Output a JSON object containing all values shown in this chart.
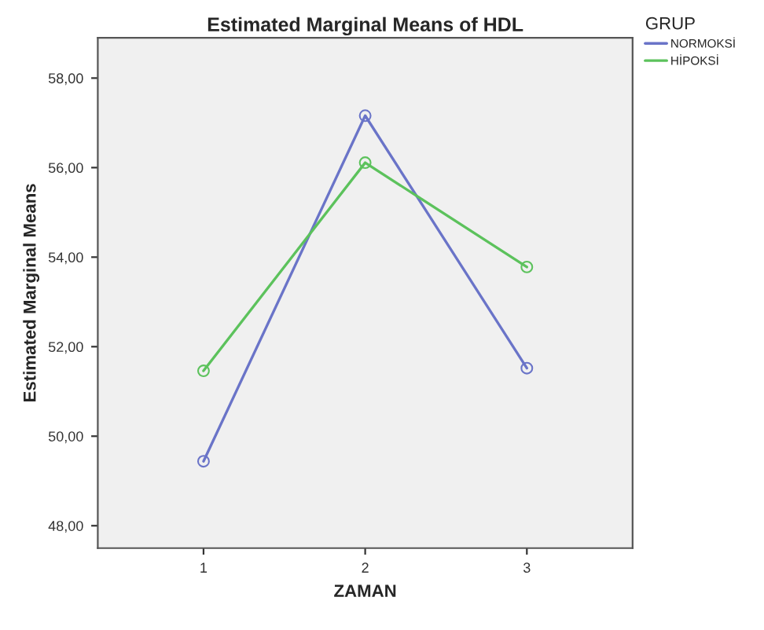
{
  "chart_data": {
    "type": "line",
    "title": "Estimated Marginal Means of HDL",
    "xlabel": "ZAMAN",
    "ylabel": "Estimated Marginal Means",
    "legend_title": "GRUP",
    "categories": [
      "1",
      "2",
      "3"
    ],
    "series": [
      {
        "name": "NORMOKSİ",
        "color": "#6a74c8",
        "values": [
          49.44,
          57.16,
          51.52
        ]
      },
      {
        "name": "HİPOKSİ",
        "color": "#5cc25c",
        "values": [
          51.46,
          56.11,
          53.78
        ]
      }
    ],
    "ylim": [
      47.5,
      58.9
    ],
    "yticks": [
      {
        "value": 48,
        "label": "48,00"
      },
      {
        "value": 50,
        "label": "50,00"
      },
      {
        "value": 52,
        "label": "52,00"
      },
      {
        "value": 54,
        "label": "54,00"
      },
      {
        "value": 56,
        "label": "56,00"
      },
      {
        "value": 58,
        "label": "58,00"
      }
    ],
    "marker": "circle",
    "line_style": "solid",
    "legend": "top right",
    "grid": false
  }
}
